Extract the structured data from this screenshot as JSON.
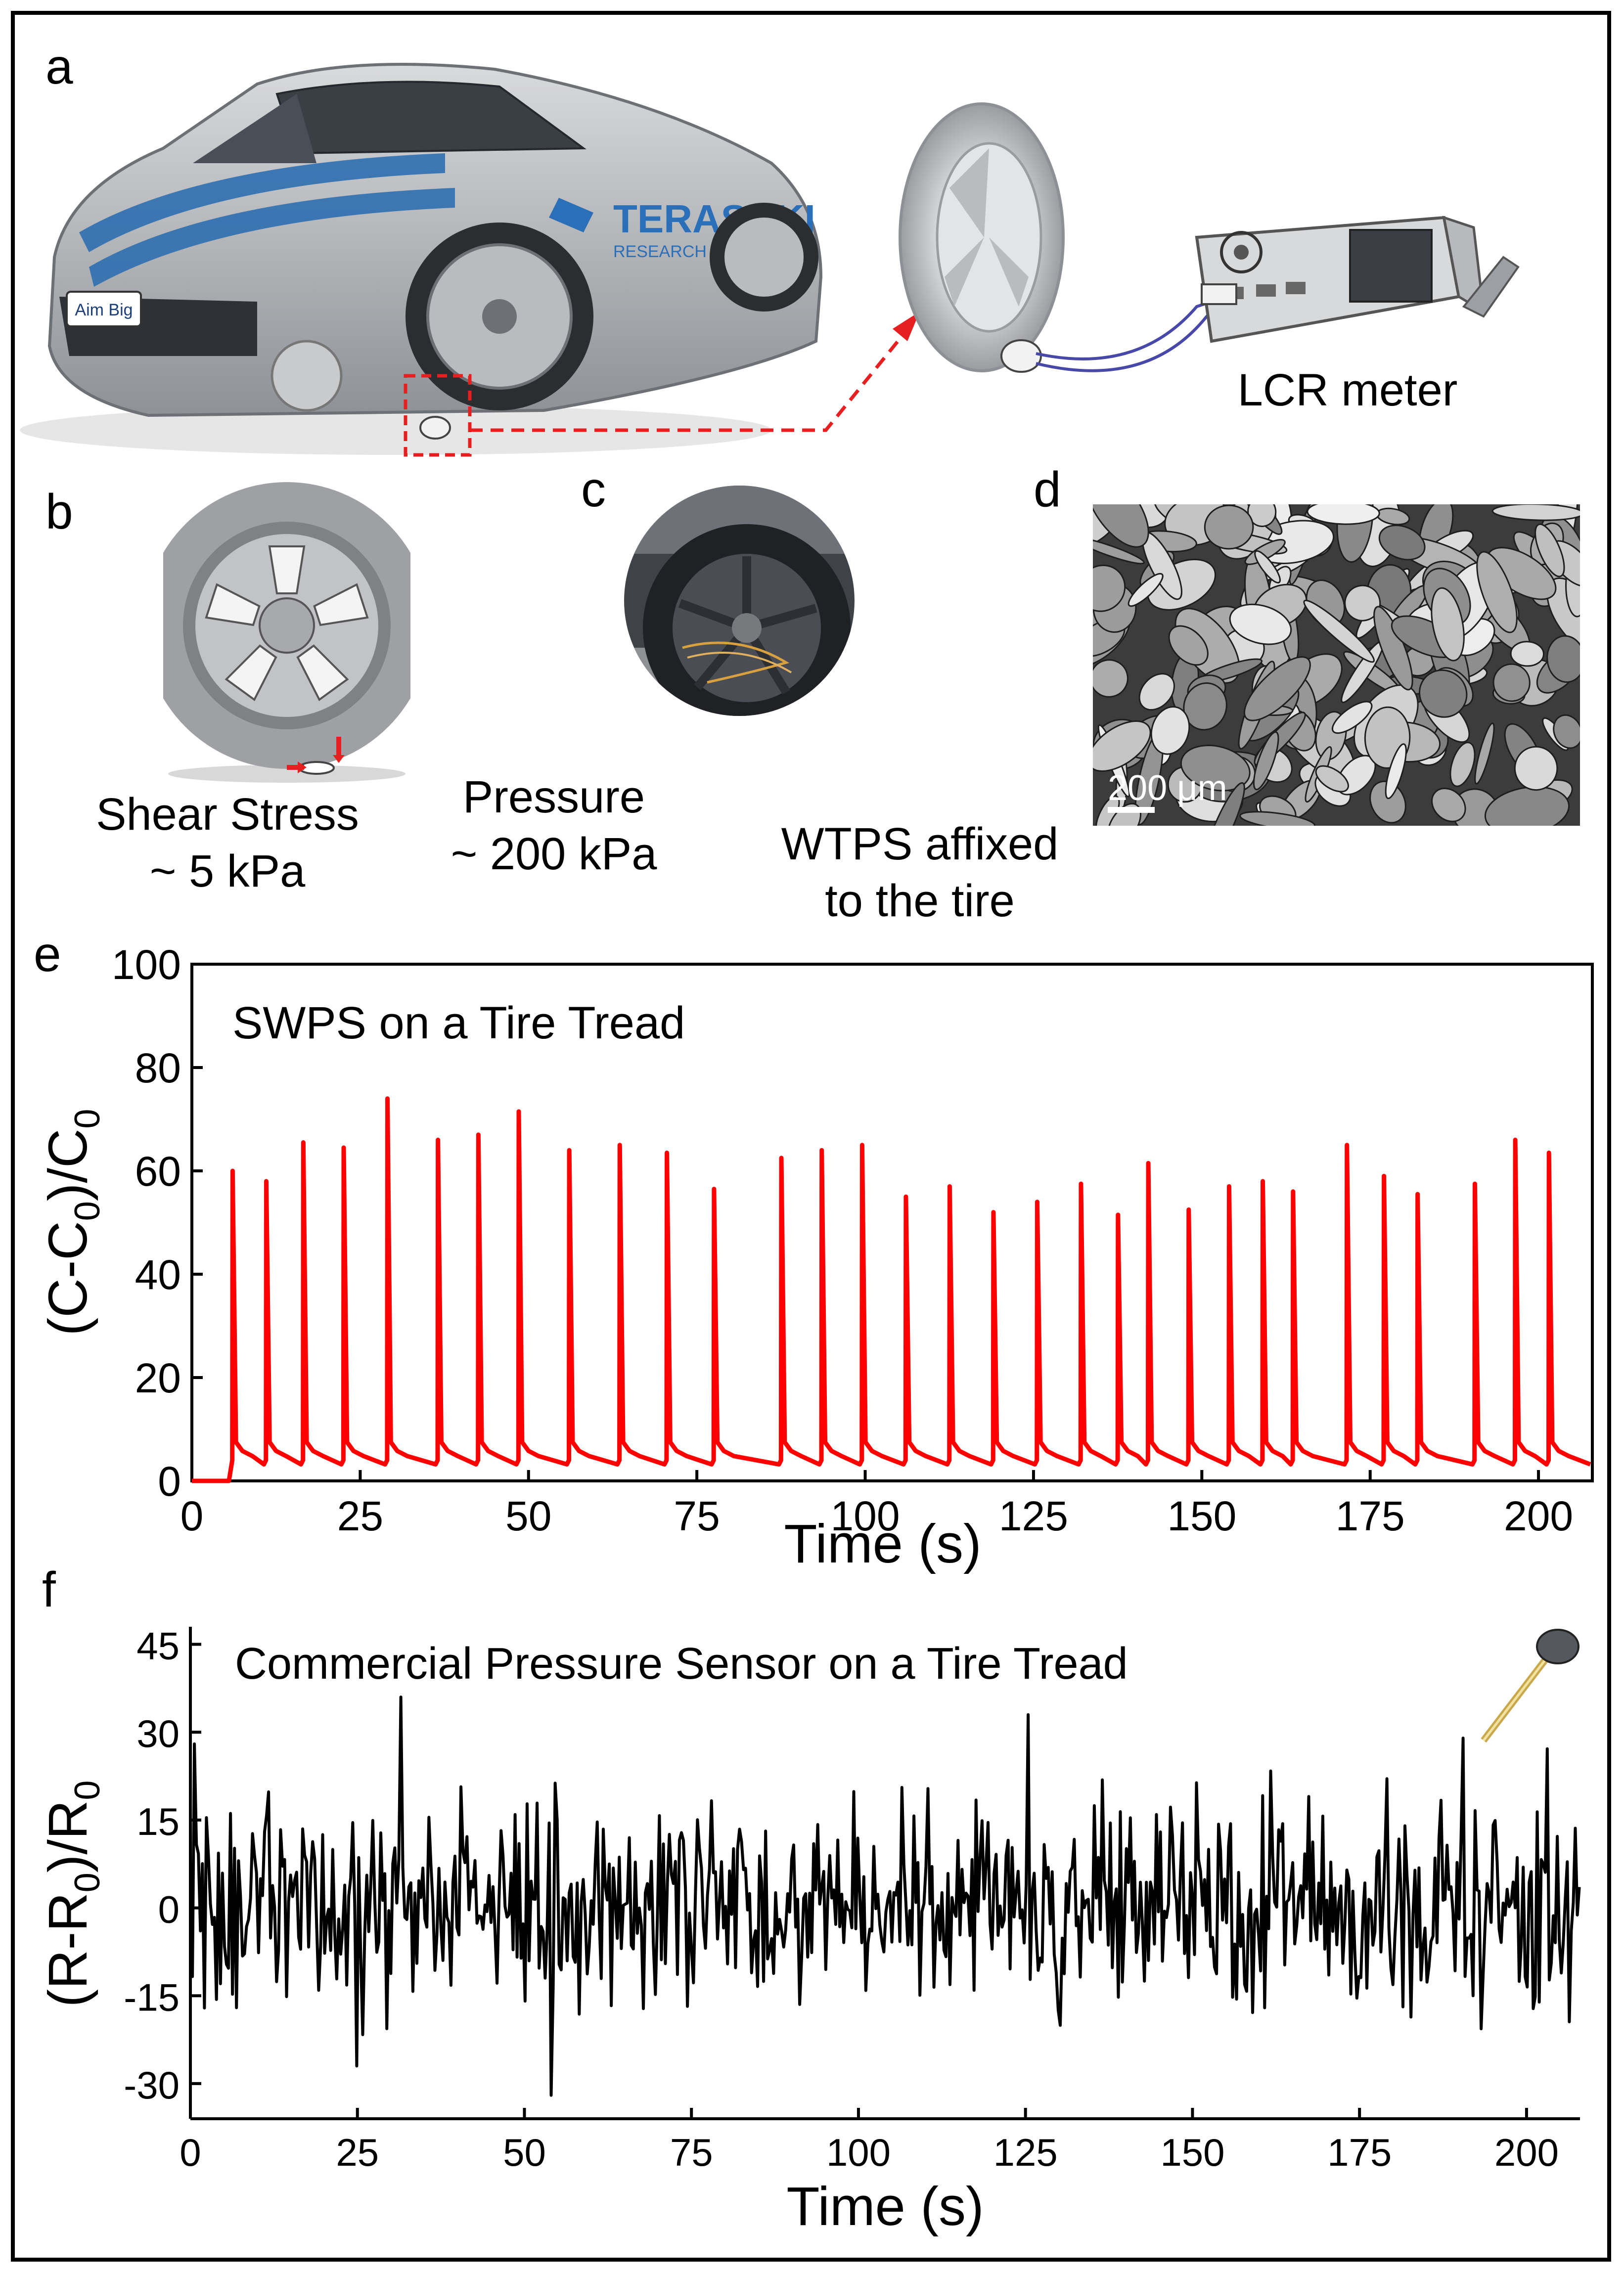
{
  "panel_labels": {
    "a": "a",
    "b": "b",
    "c": "c",
    "d": "d",
    "e": "e",
    "f": "f"
  },
  "panel_a": {
    "plate_text": "Aim Big",
    "logo_line1": "TERASAKI",
    "logo_line2": "RESEARCH INSTITUTE",
    "meter_label": "LCR meter"
  },
  "panel_b": {
    "shear_line1": "Shear  Stress",
    "shear_line2": "~ 5 kPa",
    "pressure_line1": "Pressure",
    "pressure_line2": "~ 200 kPa"
  },
  "panel_c": {
    "caption_line1": "WTPS affixed",
    "caption_line2": "to the tire"
  },
  "panel_d": {
    "scale_label": "200 μm"
  },
  "colors": {
    "series_e": "#ff0000",
    "series_f": "#000000",
    "marker": "#e62020"
  },
  "chart_data": [
    {
      "type": "line",
      "title": "SWPS on a Tire Tread",
      "xlabel": "Time (s)",
      "ylabel": "(C-C0)/C0",
      "ylabel_base": "(C-C",
      "ylabel_sub1": "0",
      "ylabel_mid": ")/C",
      "ylabel_sub2": "0",
      "xlim": [
        0,
        208
      ],
      "ylim": [
        0,
        100
      ],
      "xticks": [
        "0",
        "25",
        "50",
        "75",
        "100",
        "125",
        "150",
        "175",
        "200"
      ],
      "yticks": [
        "0",
        "20",
        "40",
        "60",
        "80",
        "100"
      ],
      "baseline_level": 4,
      "onset_s": 5.5,
      "series": [
        {
          "peaks": [
            [
              6,
              60
            ],
            [
              11,
              58
            ],
            [
              16.5,
              65.5
            ],
            [
              22.5,
              64.5
            ],
            [
              29,
              74
            ],
            [
              36.5,
              66
            ],
            [
              42.5,
              67
            ],
            [
              48.5,
              71.5
            ],
            [
              56,
              64
            ],
            [
              63.5,
              65
            ],
            [
              70.5,
              63.5
            ],
            [
              77.5,
              56.5
            ],
            [
              87.5,
              62.5
            ],
            [
              93.5,
              64
            ],
            [
              99.5,
              65
            ],
            [
              106,
              55
            ],
            [
              112.5,
              57
            ],
            [
              119,
              52
            ],
            [
              125.5,
              54
            ],
            [
              132,
              57.5
            ],
            [
              137.5,
              51.5
            ],
            [
              142,
              61.5
            ],
            [
              148,
              52.5
            ],
            [
              154,
              57
            ],
            [
              159,
              58
            ],
            [
              163.5,
              56
            ],
            [
              171.5,
              65
            ],
            [
              177,
              59
            ],
            [
              182,
              55.5
            ],
            [
              190.5,
              57.5
            ],
            [
              196.5,
              66
            ],
            [
              201.5,
              63.5
            ]
          ]
        }
      ]
    },
    {
      "type": "line",
      "title": "Commercial Pressure Sensor on a Tire Tread",
      "xlabel": "Time (s)",
      "ylabel": "(R-R0)/R0",
      "ylabel_base": "(R-R",
      "ylabel_sub1": "0",
      "ylabel_mid": ")/R",
      "ylabel_sub2": "0",
      "xlim": [
        0,
        208
      ],
      "ylim": [
        -36,
        48
      ],
      "xticks": [
        "0",
        "25",
        "50",
        "75",
        "100",
        "125",
        "150",
        "175",
        "200"
      ],
      "yticks": [
        "-30",
        "-15",
        "0",
        "15",
        "30",
        "45"
      ],
      "noise_range": [
        -32,
        36
      ],
      "notable_extremes": [
        [
          0.5,
          28
        ],
        [
          31.5,
          36
        ],
        [
          54,
          -32
        ],
        [
          125.5,
          33
        ],
        [
          190.5,
          29
        ],
        [
          25,
          -27
        ]
      ]
    }
  ]
}
